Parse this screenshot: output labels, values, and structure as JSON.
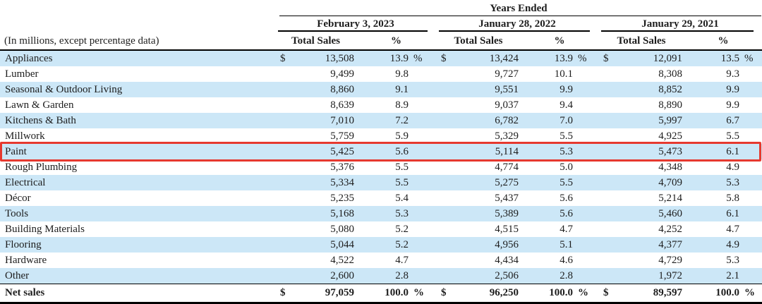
{
  "table": {
    "years_ended_label": "Years Ended",
    "note": "(In millions, except percentage data)",
    "currency_symbol": "$",
    "percent_symbol": "%",
    "periods": [
      {
        "label": "February 3, 2023"
      },
      {
        "label": "January 28, 2022"
      },
      {
        "label": "January 29, 2021"
      }
    ],
    "sub_headers": {
      "total_sales": "Total Sales",
      "percent": "%"
    },
    "rows": [
      {
        "category": "Appliances",
        "show_symbols": true,
        "highlighted": false,
        "c2023": {
          "sales": "13,508",
          "pct": "13.9"
        },
        "c2022": {
          "sales": "13,424",
          "pct": "13.9"
        },
        "c2021": {
          "sales": "12,091",
          "pct": "13.5"
        }
      },
      {
        "category": "Lumber",
        "show_symbols": false,
        "highlighted": false,
        "c2023": {
          "sales": "9,499",
          "pct": "9.8"
        },
        "c2022": {
          "sales": "9,727",
          "pct": "10.1"
        },
        "c2021": {
          "sales": "8,308",
          "pct": "9.3"
        }
      },
      {
        "category": "Seasonal & Outdoor Living",
        "show_symbols": false,
        "highlighted": false,
        "c2023": {
          "sales": "8,860",
          "pct": "9.1"
        },
        "c2022": {
          "sales": "9,551",
          "pct": "9.9"
        },
        "c2021": {
          "sales": "8,852",
          "pct": "9.9"
        }
      },
      {
        "category": "Lawn & Garden",
        "show_symbols": false,
        "highlighted": false,
        "c2023": {
          "sales": "8,639",
          "pct": "8.9"
        },
        "c2022": {
          "sales": "9,037",
          "pct": "9.4"
        },
        "c2021": {
          "sales": "8,890",
          "pct": "9.9"
        }
      },
      {
        "category": "Kitchens & Bath",
        "show_symbols": false,
        "highlighted": false,
        "c2023": {
          "sales": "7,010",
          "pct": "7.2"
        },
        "c2022": {
          "sales": "6,782",
          "pct": "7.0"
        },
        "c2021": {
          "sales": "5,997",
          "pct": "6.7"
        }
      },
      {
        "category": "Millwork",
        "show_symbols": false,
        "highlighted": false,
        "c2023": {
          "sales": "5,759",
          "pct": "5.9"
        },
        "c2022": {
          "sales": "5,329",
          "pct": "5.5"
        },
        "c2021": {
          "sales": "4,925",
          "pct": "5.5"
        }
      },
      {
        "category": "Paint",
        "show_symbols": false,
        "highlighted": true,
        "c2023": {
          "sales": "5,425",
          "pct": "5.6"
        },
        "c2022": {
          "sales": "5,114",
          "pct": "5.3"
        },
        "c2021": {
          "sales": "5,473",
          "pct": "6.1"
        }
      },
      {
        "category": "Rough Plumbing",
        "show_symbols": false,
        "highlighted": false,
        "c2023": {
          "sales": "5,376",
          "pct": "5.5"
        },
        "c2022": {
          "sales": "4,774",
          "pct": "5.0"
        },
        "c2021": {
          "sales": "4,348",
          "pct": "4.9"
        }
      },
      {
        "category": "Electrical",
        "show_symbols": false,
        "highlighted": false,
        "c2023": {
          "sales": "5,334",
          "pct": "5.5"
        },
        "c2022": {
          "sales": "5,275",
          "pct": "5.5"
        },
        "c2021": {
          "sales": "4,709",
          "pct": "5.3"
        }
      },
      {
        "category": "Décor",
        "show_symbols": false,
        "highlighted": false,
        "c2023": {
          "sales": "5,235",
          "pct": "5.4"
        },
        "c2022": {
          "sales": "5,437",
          "pct": "5.6"
        },
        "c2021": {
          "sales": "5,214",
          "pct": "5.8"
        }
      },
      {
        "category": "Tools",
        "show_symbols": false,
        "highlighted": false,
        "c2023": {
          "sales": "5,168",
          "pct": "5.3"
        },
        "c2022": {
          "sales": "5,389",
          "pct": "5.6"
        },
        "c2021": {
          "sales": "5,460",
          "pct": "6.1"
        }
      },
      {
        "category": "Building Materials",
        "show_symbols": false,
        "highlighted": false,
        "c2023": {
          "sales": "5,080",
          "pct": "5.2"
        },
        "c2022": {
          "sales": "4,515",
          "pct": "4.7"
        },
        "c2021": {
          "sales": "4,252",
          "pct": "4.7"
        }
      },
      {
        "category": "Flooring",
        "show_symbols": false,
        "highlighted": false,
        "c2023": {
          "sales": "5,044",
          "pct": "5.2"
        },
        "c2022": {
          "sales": "4,956",
          "pct": "5.1"
        },
        "c2021": {
          "sales": "4,377",
          "pct": "4.9"
        }
      },
      {
        "category": "Hardware",
        "show_symbols": false,
        "highlighted": false,
        "c2023": {
          "sales": "4,522",
          "pct": "4.7"
        },
        "c2022": {
          "sales": "4,434",
          "pct": "4.6"
        },
        "c2021": {
          "sales": "4,729",
          "pct": "5.3"
        }
      },
      {
        "category": "Other",
        "show_symbols": false,
        "highlighted": false,
        "c2023": {
          "sales": "2,600",
          "pct": "2.8"
        },
        "c2022": {
          "sales": "2,506",
          "pct": "2.8"
        },
        "c2021": {
          "sales": "1,972",
          "pct": "2.1"
        }
      }
    ],
    "total_row": {
      "category": "Net sales",
      "show_symbols": true,
      "c2023": {
        "sales": "97,059",
        "pct": "100.0"
      },
      "c2022": {
        "sales": "96,250",
        "pct": "100.0"
      },
      "c2021": {
        "sales": "89,597",
        "pct": "100.0"
      }
    }
  },
  "colors": {
    "row_stripe": "#cce7f7",
    "highlight_border": "#e6392f",
    "rule": "#000000"
  }
}
